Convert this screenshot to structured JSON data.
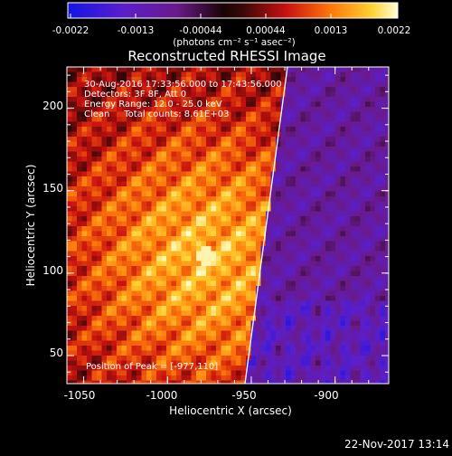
{
  "colorbar": {
    "ticks": [
      "-0.0022",
      "-0.0013",
      "-0.00044",
      "0.00044",
      "0.0013",
      "0.0022"
    ],
    "unit_label": "(photons cm⁻² s⁻¹ asec⁻²)"
  },
  "plot": {
    "title": "Reconstructed RHESSI Image",
    "xlabel": "Heliocentric X (arcsec)",
    "ylabel": "Heliocentric Y (arcsec)",
    "x_ticks": [
      "-1050",
      "-1000",
      "-950",
      "-900"
    ],
    "y_ticks": [
      "200",
      "150",
      "100",
      "50"
    ]
  },
  "annotations": {
    "time_range": "30-Aug-2016 17:33:56.000 to 17:43:56.000",
    "detectors": "Detectors: 3F 8F, Att 0",
    "energy_range": "Energy Range: 12.0 - 25.0 keV",
    "method_counts": "Clean     Total counts: 8.61E+03",
    "peak_position": "Position of Peak = [-977,110]"
  },
  "footer": {
    "timestamp": "22-Nov-2017 13:14"
  },
  "colors": {
    "background": "#000000",
    "limb_line": "#ffffff"
  },
  "chart_data": {
    "type": "heatmap",
    "title": "Reconstructed RHESSI Image",
    "xlabel": "Heliocentric X (arcsec)",
    "ylabel": "Heliocentric Y (arcsec)",
    "xlim": [
      -1060,
      -868
    ],
    "ylim": [
      33,
      225
    ],
    "color_range": [
      -0.0022,
      0.0022
    ],
    "colormap": "blue-purple-black-red-orange-yellow-white",
    "peak": [
      -977,
      110
    ]
  }
}
